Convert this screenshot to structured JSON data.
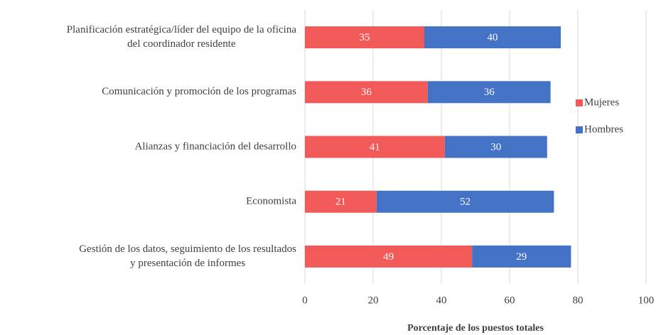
{
  "chart_data": {
    "type": "stacked_barh",
    "categories": [
      [
        "Planificación estratégica/líder del equipo de la oficina",
        "del coordinador residente"
      ],
      [
        "Comunicación y promoción de los programas"
      ],
      [
        "Alianzas y financiación del desarrollo"
      ],
      [
        "Economista"
      ],
      [
        "Gestión de los datos, seguimiento de los resultados",
        "y presentación de informes"
      ]
    ],
    "series": [
      {
        "name": "Mujeres",
        "color": "#f25a5a",
        "values": [
          35,
          36,
          41,
          21,
          49
        ]
      },
      {
        "name": "Hombres",
        "color": "#4472c4",
        "values": [
          40,
          36,
          30,
          52,
          29
        ]
      }
    ],
    "xlabel": "Porcentaje de los puestos totales",
    "xlim": [
      0,
      100
    ],
    "xticks": [
      0,
      20,
      40,
      60,
      80,
      100
    ],
    "grid": true,
    "legend": "right"
  }
}
